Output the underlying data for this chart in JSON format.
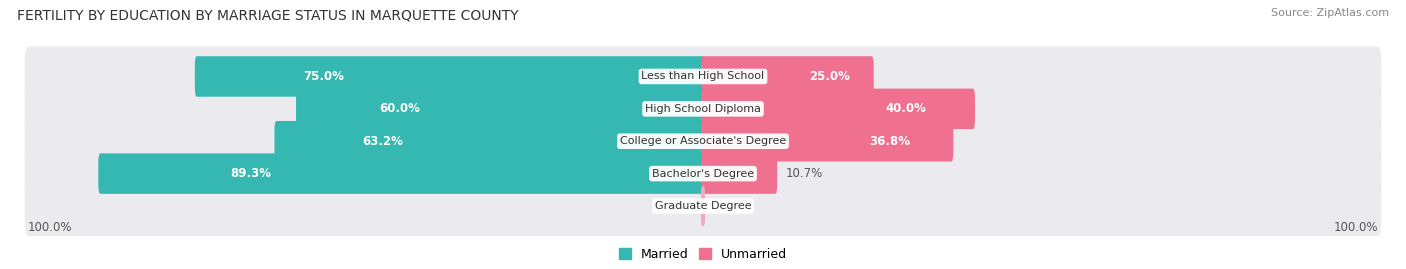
{
  "title": "FERTILITY BY EDUCATION BY MARRIAGE STATUS IN MARQUETTE COUNTY",
  "source": "Source: ZipAtlas.com",
  "categories": [
    "Less than High School",
    "High School Diploma",
    "College or Associate's Degree",
    "Bachelor's Degree",
    "Graduate Degree"
  ],
  "married": [
    75.0,
    60.0,
    63.2,
    89.3,
    0.0
  ],
  "unmarried": [
    25.0,
    40.0,
    36.8,
    10.7,
    0.0
  ],
  "married_color": "#35b8b2",
  "unmarried_color": "#f07090",
  "married_light_color": "#90d0cc",
  "unmarried_light_color": "#f4a8be",
  "row_bg_color": "#ebebef",
  "legend_married": "Married",
  "legend_unmarried": "Unmarried",
  "axis_label_left": "100.0%",
  "axis_label_right": "100.0%"
}
